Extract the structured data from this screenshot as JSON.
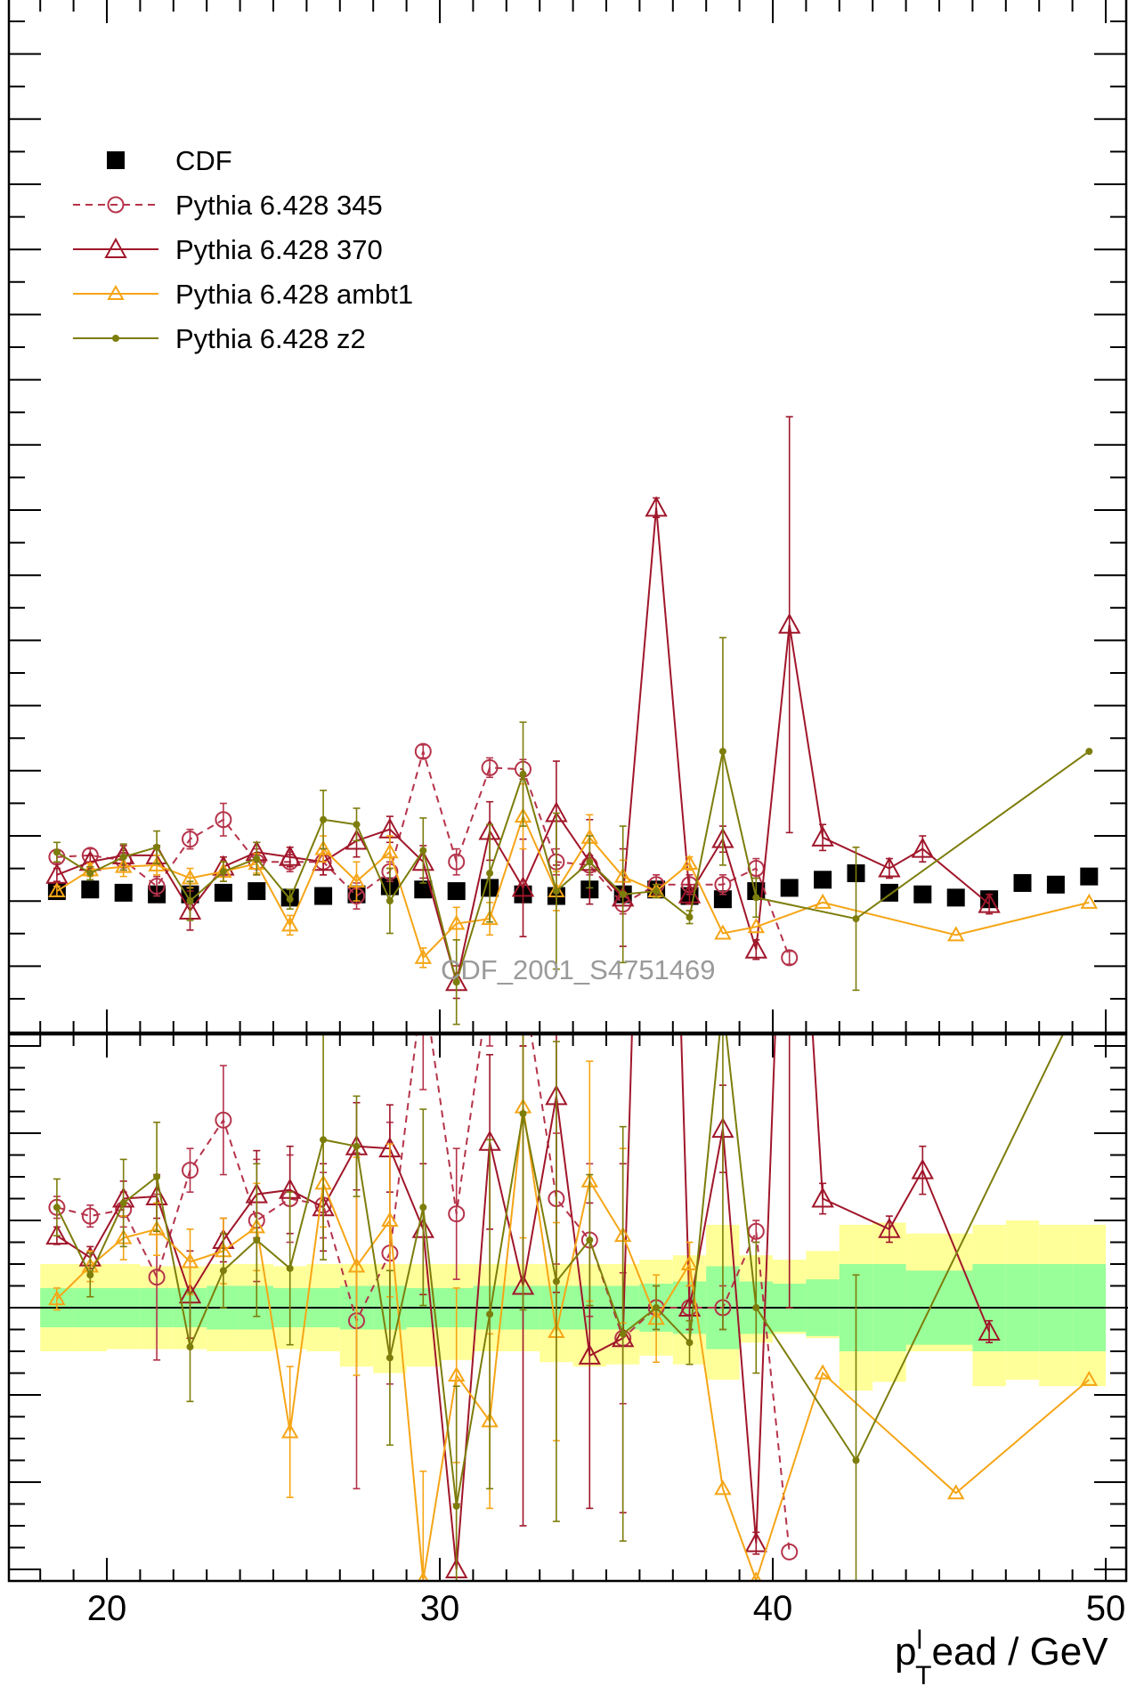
{
  "chart_data": {
    "type": "line",
    "title": "",
    "watermark": "CDF_2001_S4751469",
    "xlabel": {
      "main": "p",
      "sub": "T",
      "sup": "l",
      "rest": "ead / GeV"
    },
    "xlim": [
      17.5,
      51
    ],
    "xticks": [
      "20",
      "30",
      "40",
      "50"
    ],
    "main_ylim": [
      0,
      30
    ],
    "ratio_ylim": [
      -1.2,
      1.2
    ],
    "legend_position": "top-left",
    "series": [
      {
        "name": "CDF",
        "color": "#000000",
        "marker": "square",
        "dash": false,
        "line": false,
        "x": [
          18.5,
          19.5,
          20.5,
          21.5,
          22.5,
          23.5,
          24.5,
          25.5,
          26.5,
          27.5,
          28.5,
          29.5,
          30.5,
          31.5,
          32.5,
          33.5,
          34.5,
          35.5,
          36.5,
          37.5,
          38.5,
          39.5,
          40.5,
          41.5,
          42.5,
          43.5,
          44.5,
          45.5,
          46.5,
          47.5,
          48.5,
          49.5
        ],
        "y": [
          2.3,
          2.35,
          2.25,
          2.2,
          2.2,
          2.25,
          2.3,
          2.1,
          2.15,
          2.2,
          2.45,
          2.35,
          2.3,
          2.4,
          2.2,
          2.15,
          2.35,
          2.2,
          2.35,
          2.15,
          2.05,
          2.3,
          2.4,
          2.65,
          2.85,
          2.25,
          2.2,
          2.1,
          2.05,
          2.55,
          2.5,
          2.75
        ],
        "err": [
          0.1,
          0.1,
          0.1,
          0.1,
          0.1,
          0.1,
          0.1,
          0.1,
          0.1,
          0.1,
          0.1,
          0.1,
          0.1,
          0.1,
          0.1,
          0.1,
          0.1,
          0.1,
          0.1,
          0.1,
          0.1,
          0.1,
          0.1,
          0.1,
          0.1,
          0.1,
          0.1,
          0.1,
          0.1,
          0.1,
          0.1,
          0.1
        ],
        "ratio_band_inner": [
          0.09,
          0.09,
          0.09,
          0.09,
          0.09,
          0.1,
          0.1,
          0.09,
          0.09,
          0.1,
          0.1,
          0.09,
          0.09,
          0.1,
          0.1,
          0.1,
          0.1,
          0.1,
          0.11,
          0.12,
          0.19,
          0.12,
          0.11,
          0.13,
          0.2,
          0.2,
          0.17,
          0.17,
          0.2,
          0.2,
          0.2,
          0.2
        ],
        "ratio_band_outer": [
          0.2,
          0.2,
          0.2,
          0.19,
          0.19,
          0.2,
          0.2,
          0.19,
          0.2,
          0.2,
          0.2,
          0.2,
          0.2,
          0.2,
          0.2,
          0.2,
          0.2,
          0.2,
          0.22,
          0.24,
          0.38,
          0.24,
          0.22,
          0.26,
          0.38,
          0.39,
          0.34,
          0.34,
          0.38,
          0.4,
          0.38,
          0.38
        ],
        "ratio_band_outer_lo": [
          0.2,
          0.2,
          0.19,
          0.19,
          0.19,
          0.2,
          0.2,
          0.19,
          0.2,
          0.27,
          0.3,
          0.27,
          0.24,
          0.2,
          0.2,
          0.25,
          0.27,
          0.26,
          0.22,
          0.26,
          0.33,
          0.16,
          0.12,
          0.14,
          0.38,
          0.34,
          0.2,
          0.2,
          0.36,
          0.33,
          0.36,
          0.36
        ]
      },
      {
        "name": "Pythia 6.428 345",
        "color": "#b5334a",
        "marker": "circle",
        "dash": true,
        "line": true,
        "x": [
          18.5,
          19.5,
          20.5,
          21.5,
          22.5,
          23.5,
          24.5,
          25.5,
          26.5,
          27.5,
          28.5,
          29.5,
          30.5,
          31.5,
          32.5,
          33.5,
          34.5,
          35.5,
          36.5,
          37.5,
          38.5,
          39.5,
          40.5
        ],
        "y": [
          3.35,
          3.4,
          3.25,
          2.45,
          3.9,
          4.5,
          3.2,
          3.2,
          3.2,
          2.15,
          2.9,
          6.6,
          3.2,
          6.1,
          6.05,
          3.2,
          3.1,
          1.9,
          2.5,
          2.5,
          2.5,
          3,
          0.25
        ],
        "err": [
          0.2,
          0.2,
          0.3,
          0.3,
          0.3,
          0.5,
          0.4,
          0.3,
          0.4,
          0.4,
          0.3,
          0.2,
          0.4,
          0.3,
          0.3,
          0.4,
          0.3,
          0.3,
          0.3,
          0.3,
          0.3,
          0.3,
          0.2
        ],
        "ratio": [
          0.46,
          0.42,
          0.45,
          0.14,
          0.63,
          0.86,
          0.4,
          0.5,
          0.47,
          -0.06,
          0.25,
          1.5,
          0.43,
          1.5,
          1.5,
          0.5,
          0.31,
          -0.14,
          0.0,
          0.0,
          0.0,
          0.35,
          -1.12
        ],
        "ratio_err": [
          0.05,
          0.05,
          0.08,
          0.38,
          0.1,
          0.25,
          0.28,
          0.2,
          0.15,
          0.77,
          0.6,
          0.5,
          0.3,
          0.3,
          0.3,
          0.3,
          0.35,
          0.3,
          0.1,
          0.1,
          0.1,
          0.05,
          0.03
        ]
      },
      {
        "name": "Pythia 6.428 370",
        "color": "#a0162a",
        "marker": "triangle",
        "dash": false,
        "line": true,
        "x": [
          18.5,
          19.5,
          20.5,
          21.5,
          22.5,
          23.5,
          24.5,
          25.5,
          26.5,
          27.5,
          28.5,
          29.5,
          30.5,
          31.5,
          32.5,
          33.5,
          34.5,
          35.5,
          36.5,
          37.5,
          38.5,
          39.5,
          40.5,
          41.5,
          43.5,
          44.5,
          46.5
        ],
        "y": [
          2.8,
          3.2,
          3.4,
          3.4,
          1.7,
          3.05,
          3.5,
          3.35,
          3.2,
          3.85,
          4.2,
          3.2,
          -0.5,
          4.15,
          2.4,
          4.7,
          3.2,
          2.1,
          14.1,
          2.2,
          3.9,
          0.5,
          10.5,
          3.95,
          3,
          3.6,
          1.9
        ],
        "err": [
          0.2,
          0.2,
          0.3,
          0.3,
          0.6,
          0.3,
          0.3,
          0.3,
          0.4,
          0.5,
          0.4,
          0.5,
          0.5,
          0.9,
          1.5,
          1.6,
          1.3,
          1.5,
          0.3,
          0.3,
          0.4,
          0.3,
          6.4,
          0.4,
          0.3,
          0.4,
          0.3
        ],
        "ratio": [
          0.33,
          0.23,
          0.5,
          0.51,
          0.06,
          0.31,
          0.52,
          0.54,
          0.46,
          0.74,
          0.73,
          0.36,
          -1.2,
          0.76,
          0.1,
          0.97,
          -0.22,
          -0.14,
          5,
          0,
          0.82,
          -1.08,
          3,
          0.5,
          0.36,
          0.63,
          -0.11
        ],
        "ratio_err": [
          0.04,
          0.05,
          0.08,
          0.1,
          0.2,
          0.1,
          0.2,
          0.2,
          0.2,
          0.2,
          0.2,
          0.3,
          0.3,
          0.4,
          1.1,
          0.9,
          0.7,
          0.8,
          0.2,
          0.1,
          0.2,
          0.05,
          3,
          0.07,
          0.06,
          0.11,
          0.05
        ]
      },
      {
        "name": "Pythia 6.428 ambt1",
        "color": "#f5a516",
        "marker": "triangle-small",
        "dash": false,
        "line": true,
        "x": [
          18.5,
          19.5,
          20.5,
          21.5,
          22.5,
          23.5,
          24.5,
          25.5,
          26.5,
          27.5,
          28.5,
          29.5,
          30.5,
          31.5,
          32.5,
          33.5,
          34.5,
          35.5,
          36.5,
          37.5,
          38.5,
          39.5,
          41.5,
          45.5,
          49.5
        ],
        "y": [
          2.3,
          2.95,
          3.05,
          3.1,
          2.7,
          2.9,
          3.15,
          1.25,
          3.6,
          2.6,
          3.5,
          0.25,
          1.3,
          1.45,
          4.6,
          2.3,
          3.95,
          2.75,
          2.3,
          3.15,
          1.0,
          1.2,
          1.95,
          0.95,
          1.95
        ],
        "err": [
          0.15,
          0.2,
          0.3,
          0.3,
          0.3,
          0.3,
          0.3,
          0.3,
          0.4,
          0.6,
          0.5,
          0.3,
          0.5,
          0.5,
          1,
          0.6,
          0.7,
          0.5,
          0.2,
          0.2,
          0.1,
          0.1,
          0.1,
          0.1,
          0.1
        ],
        "ratio": [
          0.04,
          0.19,
          0.32,
          0.36,
          0.21,
          0.26,
          0.37,
          -0.57,
          0.57,
          0.19,
          0.4,
          -1.25,
          -0.31,
          -0.52,
          0.92,
          -0.11,
          0.58,
          0.33,
          -0.05,
          0.2,
          -0.83,
          -1.25,
          -0.3,
          -0.85,
          -0.33
        ],
        "ratio_err": [
          0.05,
          0.07,
          0.1,
          0.12,
          0.15,
          0.15,
          0.2,
          0.3,
          0.2,
          0.5,
          0.35,
          0.5,
          0.4,
          0.4,
          0.6,
          0.5,
          0.55,
          0.4,
          0.2,
          0.1,
          0.02,
          0.02,
          0.02,
          0.02,
          0.02
        ]
      },
      {
        "name": "Pythia 6.428 z2",
        "color": "#7d7d0c",
        "marker": "dot",
        "dash": false,
        "line": true,
        "x": [
          18.5,
          19.5,
          20.5,
          21.5,
          22.5,
          23.5,
          24.5,
          25.5,
          26.5,
          27.5,
          28.5,
          29.5,
          30.5,
          31.5,
          32.5,
          33.5,
          34.5,
          35.5,
          36.5,
          37.5,
          38.5,
          39.5,
          42.5,
          49.5
        ],
        "y": [
          3.5,
          2.85,
          3.35,
          3.65,
          2.0,
          2.9,
          3.3,
          2.05,
          4.5,
          4.35,
          2.0,
          3.55,
          -0.5,
          2.85,
          5.9,
          2.3,
          3.2,
          2.2,
          2.3,
          1.5,
          6.6,
          2.1,
          1.45,
          6.6
        ],
        "err": [
          0.3,
          0.2,
          0.4,
          0.5,
          0.6,
          0.3,
          0.5,
          0.3,
          0.9,
          0.5,
          1,
          1,
          1.3,
          1.5,
          1.6,
          2.4,
          0.8,
          2.1,
          0.2,
          0.2,
          3.5,
          0.6,
          2.2,
          0.1
        ],
        "ratio": [
          0.46,
          0.15,
          0.48,
          0.6,
          -0.18,
          0.17,
          0.31,
          0.18,
          0.77,
          0.74,
          -0.23,
          0.46,
          -0.91,
          -0.03,
          0.89,
          0.12,
          0.31,
          -0.12,
          0.0,
          -0.16,
          1.4,
          0.0,
          -0.7,
          1.5
        ],
        "ratio_err": [
          0.13,
          0.1,
          0.2,
          0.25,
          0.25,
          0.17,
          0.35,
          0.35,
          0.55,
          0.23,
          0.4,
          0.45,
          0.55,
          0.8,
          0.9,
          1.1,
          0.3,
          0.95,
          0.1,
          0.1,
          1.5,
          0.3,
          0.85,
          0.05
        ]
      }
    ]
  }
}
